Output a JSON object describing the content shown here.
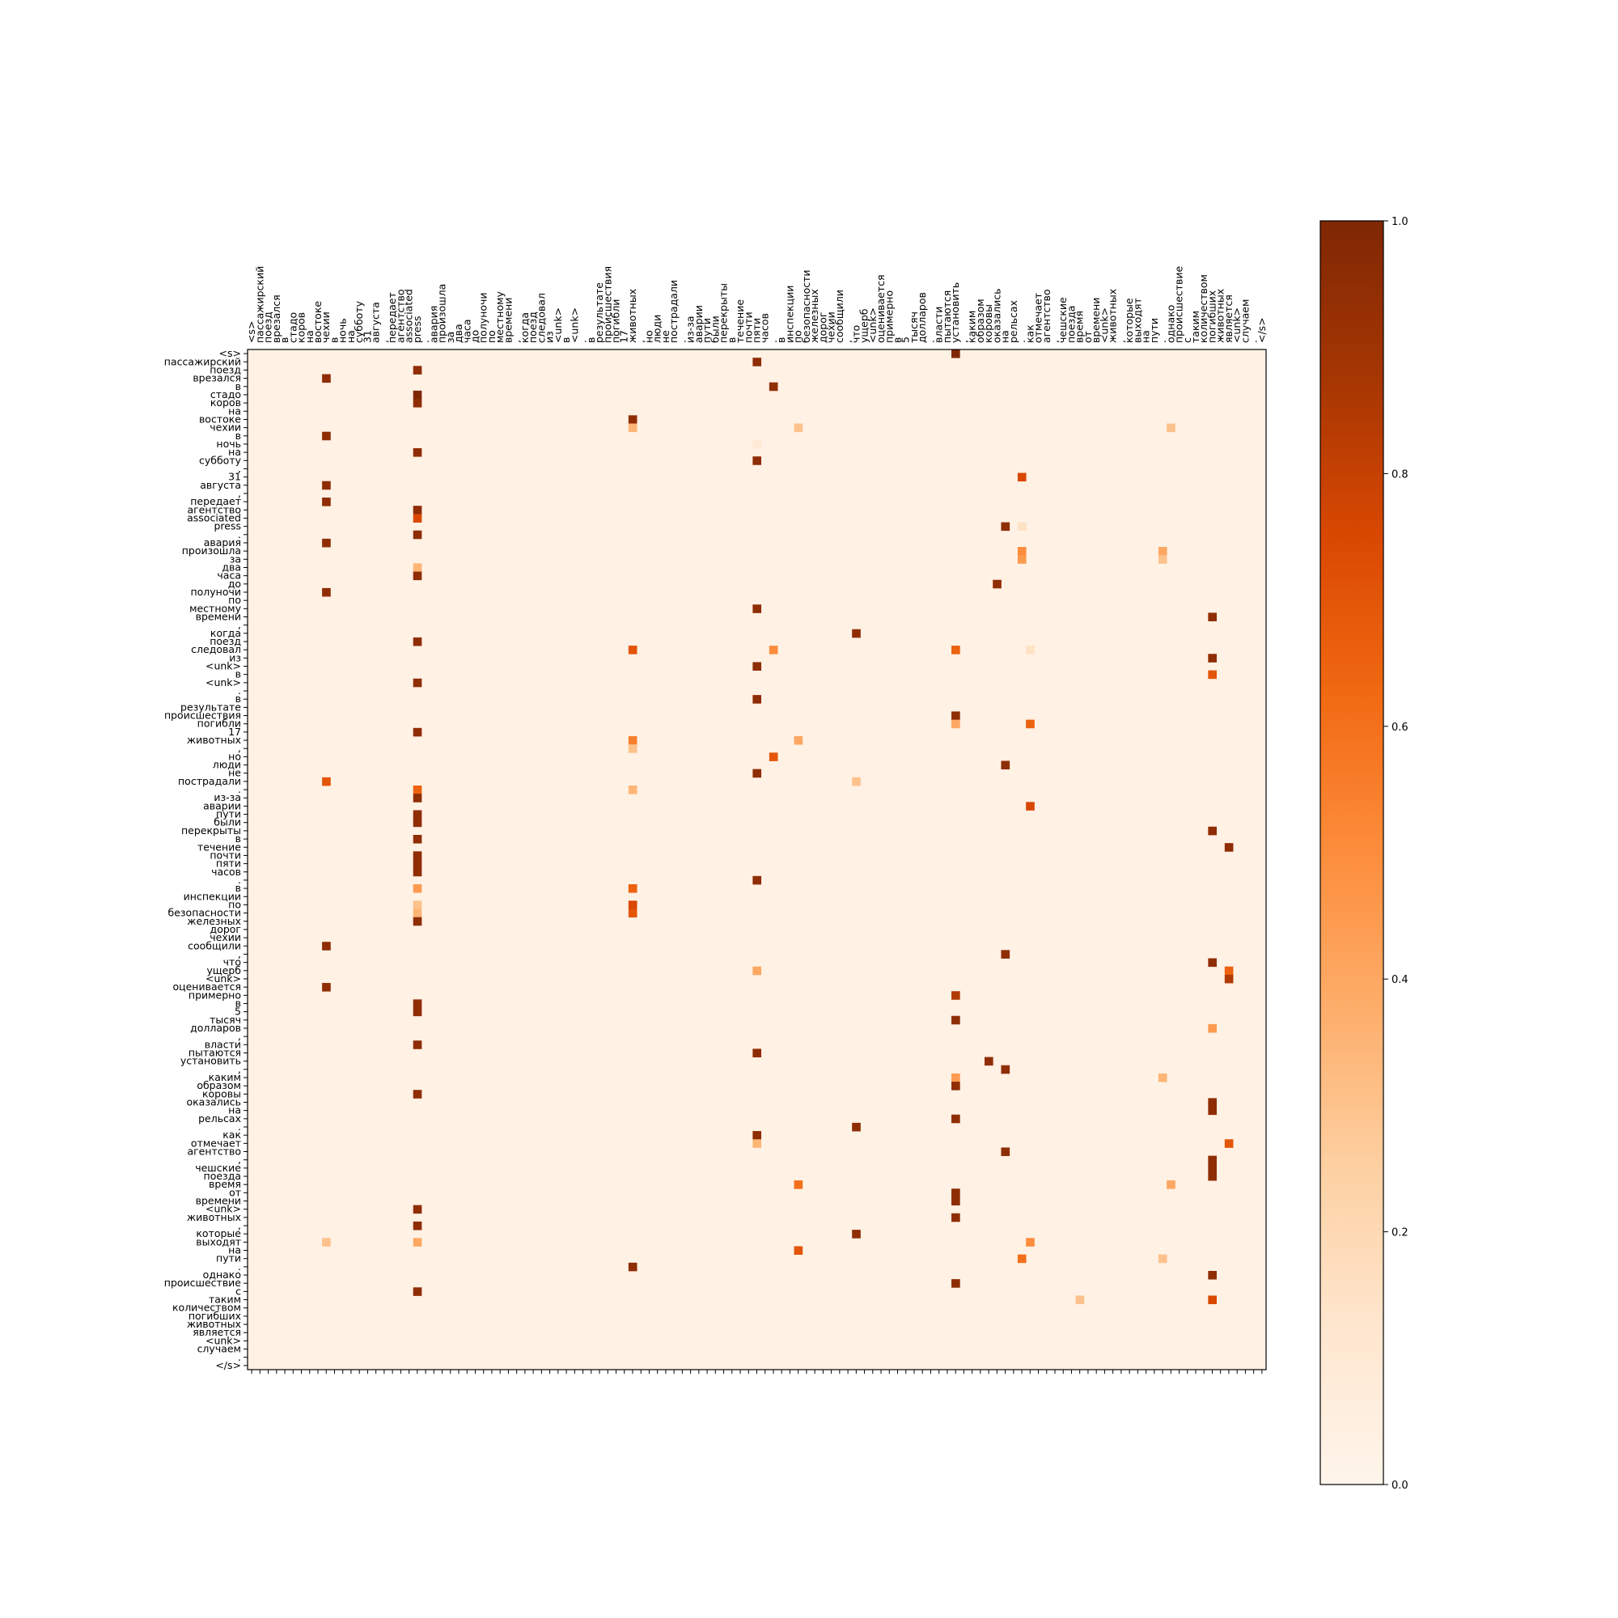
{
  "chart_data": {
    "type": "heatmap",
    "title": "",
    "xlabel": "",
    "ylabel": "",
    "colormap": "Oranges",
    "colors": {
      "low": "#fff5eb",
      "high": "#7f2704"
    },
    "value_range": [
      0,
      1
    ],
    "colorbar_ticks": [
      "0.0",
      "0.2",
      "0.4",
      "0.6",
      "0.8",
      "1.0"
    ],
    "columns": [
      "<s>",
      "пассажирский",
      "поезд",
      "врезался",
      "в",
      "стадо",
      "коров",
      "на",
      "востоке",
      "чехии",
      "в",
      "ночь",
      "на",
      "субботу",
      "31",
      "августа",
      ",",
      "передает",
      "агентство",
      "associated",
      "press",
      ".",
      "авария",
      "произошла",
      "за",
      "два",
      "часа",
      "до",
      "полуночи",
      "по",
      "местному",
      "времени",
      ",",
      "когда",
      "поезд",
      "следовал",
      "из",
      "<unk>",
      "в",
      "<unk>",
      ".",
      "в",
      "результате",
      "происшествия",
      "погибли",
      "17",
      "животных",
      ",",
      "но",
      "люди",
      "не",
      "пострадали",
      ".",
      "из-за",
      "аварии",
      "пути",
      "были",
      "перекрыты",
      "в",
      "течение",
      "почти",
      "пяти",
      "часов",
      ".",
      "в",
      "инспекции",
      "по",
      "безопасности",
      "железных",
      "дорог",
      "чехии",
      "сообщили",
      ",",
      "что",
      "ущерб",
      "<unk>",
      "оценивается",
      "примерно",
      "в",
      "5",
      "тысяч",
      "долларов",
      ".",
      "власти",
      "пытаются",
      "установить",
      ",",
      "каким",
      "образом",
      "коровы",
      "оказались",
      "на",
      "рельсах",
      ".",
      "как",
      "отмечает",
      "агентство",
      ",",
      "чешские",
      "поезда",
      "время",
      "от",
      "времени",
      "<unk>",
      "животных",
      ",",
      "которые",
      "выходят",
      "на",
      "пути",
      ".",
      "однако",
      "происшествие",
      "с",
      "таким",
      "количеством",
      "погибших",
      "животных",
      "является",
      "<unk>",
      "случаем",
      ".",
      "</s>"
    ],
    "rows": [
      "<s>",
      "пассажирский",
      "поезд",
      "врезался",
      "в",
      "стадо",
      "коров",
      "на",
      "востоке",
      "чехии",
      "в",
      "ночь",
      "на",
      "субботу",
      ",",
      "31",
      "августа",
      ",",
      "передает",
      "агентство",
      "associated",
      "press",
      ".",
      "авария",
      "произошла",
      "за",
      "два",
      "часа",
      "до",
      "полуночи",
      "по",
      "местному",
      "времени",
      ",",
      "когда",
      "поезд",
      "следовал",
      "из",
      "<unk>",
      "в",
      "<unk>",
      ".",
      "в",
      "результате",
      "происшествия",
      "погибли",
      "17",
      "животных",
      ",",
      "но",
      "люди",
      "не",
      "пострадали",
      ".",
      "из-за",
      "аварии",
      "пути",
      "были",
      "перекрыты",
      "в",
      "течение",
      "почти",
      "пяти",
      "часов",
      ".",
      "в",
      "инспекции",
      "по",
      "безопасности",
      "железных",
      "дорог",
      "чехии",
      "сообщили",
      ",",
      "что",
      "ущерб",
      "<unk>",
      "оценивается",
      "примерно",
      "в",
      "5",
      "тысяч",
      "долларов",
      ",",
      "власти",
      "пытаются",
      "установить",
      ",",
      "каким",
      "образом",
      "коровы",
      "оказались",
      "на",
      "рельсах",
      ".",
      "как",
      "отмечает",
      "агентство",
      ",",
      "чешские",
      "поезда",
      "время",
      "от",
      "времени",
      "<unk>",
      "животных",
      ",",
      "которые",
      "выходят",
      "на",
      "пути",
      ".",
      "однако",
      "происшествие",
      "с",
      "таким",
      "количеством",
      "погибших",
      "животных",
      "является",
      "<unk>",
      "случаем",
      ".",
      "</s>"
    ],
    "background_value": 0.03,
    "cells": [
      [
        0,
        85,
        1.0
      ],
      [
        1,
        61,
        0.95
      ],
      [
        2,
        20,
        0.95
      ],
      [
        3,
        9,
        0.95
      ],
      [
        4,
        63,
        0.95
      ],
      [
        5,
        20,
        1.0
      ],
      [
        6,
        20,
        0.95
      ],
      [
        8,
        46,
        0.95
      ],
      [
        9,
        46,
        0.35
      ],
      [
        9,
        66,
        0.3
      ],
      [
        9,
        111,
        0.3
      ],
      [
        10,
        9,
        0.95
      ],
      [
        11,
        61,
        0.1
      ],
      [
        12,
        20,
        0.95
      ],
      [
        13,
        61,
        0.95
      ],
      [
        15,
        93,
        0.75
      ],
      [
        16,
        9,
        0.95
      ],
      [
        18,
        9,
        0.95
      ],
      [
        19,
        20,
        0.95
      ],
      [
        20,
        20,
        0.75
      ],
      [
        21,
        91,
        0.95
      ],
      [
        21,
        93,
        0.15
      ],
      [
        22,
        20,
        0.95
      ],
      [
        23,
        9,
        0.95
      ],
      [
        24,
        93,
        0.5
      ],
      [
        24,
        110,
        0.4
      ],
      [
        25,
        93,
        0.45
      ],
      [
        25,
        110,
        0.3
      ],
      [
        26,
        20,
        0.35
      ],
      [
        27,
        20,
        0.95
      ],
      [
        28,
        90,
        0.95
      ],
      [
        29,
        9,
        0.95
      ],
      [
        31,
        61,
        0.95
      ],
      [
        32,
        116,
        0.95
      ],
      [
        34,
        73,
        0.95
      ],
      [
        35,
        20,
        0.95
      ],
      [
        36,
        46,
        0.7
      ],
      [
        36,
        63,
        0.5
      ],
      [
        36,
        85,
        0.65
      ],
      [
        36,
        94,
        0.15
      ],
      [
        37,
        116,
        0.95
      ],
      [
        38,
        61,
        0.95
      ],
      [
        39,
        116,
        0.7
      ],
      [
        40,
        20,
        0.95
      ],
      [
        42,
        61,
        0.95
      ],
      [
        44,
        85,
        0.95
      ],
      [
        45,
        85,
        0.4
      ],
      [
        45,
        94,
        0.65
      ],
      [
        46,
        20,
        0.95
      ],
      [
        47,
        46,
        0.55
      ],
      [
        47,
        66,
        0.4
      ],
      [
        48,
        46,
        0.3
      ],
      [
        49,
        63,
        0.7
      ],
      [
        50,
        91,
        0.95
      ],
      [
        51,
        61,
        0.95
      ],
      [
        52,
        9,
        0.7
      ],
      [
        52,
        73,
        0.3
      ],
      [
        53,
        20,
        0.65
      ],
      [
        53,
        46,
        0.35
      ],
      [
        54,
        20,
        0.95
      ],
      [
        55,
        94,
        0.75
      ],
      [
        56,
        20,
        0.95
      ],
      [
        57,
        20,
        0.95
      ],
      [
        58,
        116,
        0.95
      ],
      [
        59,
        20,
        0.95
      ],
      [
        60,
        118,
        0.95
      ],
      [
        61,
        20,
        0.95
      ],
      [
        62,
        20,
        0.95
      ],
      [
        63,
        20,
        0.95
      ],
      [
        64,
        61,
        0.95
      ],
      [
        65,
        20,
        0.45
      ],
      [
        65,
        46,
        0.65
      ],
      [
        67,
        20,
        0.3
      ],
      [
        67,
        46,
        0.75
      ],
      [
        68,
        20,
        0.35
      ],
      [
        68,
        46,
        0.7
      ],
      [
        69,
        20,
        0.95
      ],
      [
        72,
        9,
        0.95
      ],
      [
        73,
        91,
        0.95
      ],
      [
        74,
        116,
        0.95
      ],
      [
        75,
        61,
        0.4
      ],
      [
        75,
        118,
        0.65
      ],
      [
        76,
        118,
        0.85
      ],
      [
        77,
        9,
        0.95
      ],
      [
        78,
        85,
        0.85
      ],
      [
        79,
        20,
        0.95
      ],
      [
        80,
        20,
        0.95
      ],
      [
        81,
        85,
        0.95
      ],
      [
        82,
        116,
        0.45
      ],
      [
        84,
        20,
        0.95
      ],
      [
        85,
        61,
        0.95
      ],
      [
        86,
        89,
        0.95
      ],
      [
        87,
        91,
        0.95
      ],
      [
        88,
        85,
        0.45
      ],
      [
        88,
        110,
        0.35
      ],
      [
        89,
        85,
        0.95
      ],
      [
        90,
        20,
        0.95
      ],
      [
        91,
        116,
        0.95
      ],
      [
        92,
        116,
        0.95
      ],
      [
        93,
        85,
        0.95
      ],
      [
        94,
        73,
        0.95
      ],
      [
        95,
        61,
        0.95
      ],
      [
        96,
        61,
        0.35
      ],
      [
        96,
        118,
        0.7
      ],
      [
        97,
        91,
        0.95
      ],
      [
        98,
        116,
        0.95
      ],
      [
        99,
        116,
        0.95
      ],
      [
        100,
        116,
        0.95
      ],
      [
        101,
        66,
        0.6
      ],
      [
        101,
        111,
        0.4
      ],
      [
        102,
        85,
        0.95
      ],
      [
        103,
        85,
        0.95
      ],
      [
        104,
        20,
        0.95
      ],
      [
        105,
        85,
        0.95
      ],
      [
        106,
        20,
        0.95
      ],
      [
        107,
        73,
        0.95
      ],
      [
        108,
        9,
        0.3
      ],
      [
        108,
        20,
        0.4
      ],
      [
        108,
        94,
        0.5
      ],
      [
        109,
        66,
        0.7
      ],
      [
        110,
        93,
        0.6
      ],
      [
        110,
        110,
        0.3
      ],
      [
        111,
        46,
        0.95
      ],
      [
        112,
        116,
        0.95
      ],
      [
        113,
        85,
        0.95
      ],
      [
        114,
        20,
        0.95
      ],
      [
        115,
        100,
        0.3
      ],
      [
        115,
        116,
        0.75
      ]
    ]
  }
}
